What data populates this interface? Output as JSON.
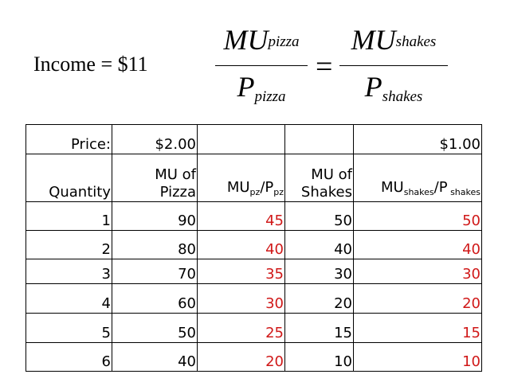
{
  "income": "Income = $11",
  "formula": {
    "left_num_main": "MU",
    "left_num_sub": "pizza",
    "left_den_main": "P",
    "left_den_sub": "pizza",
    "equals": "=",
    "right_num_main": "MU",
    "right_num_sub": "shakes",
    "right_den_main": "P",
    "right_den_sub": "shakes"
  },
  "table": {
    "price_row": {
      "label": "Price:",
      "pizza_price": "$2.00",
      "shakes_price": "$1.00"
    },
    "headers": {
      "quantity": "Quantity",
      "mu_pizza_line1": "MU of",
      "mu_pizza_line2": "Pizza",
      "mupz_main": "MU",
      "mupz_sub": "pz",
      "ppz_main": "/P",
      "ppz_sub": "pz",
      "mu_shakes_line1": "MU of",
      "mu_shakes_line2": "Shakes",
      "mush_main": "MU",
      "mush_sub": "shakes",
      "psh_main": "/P",
      "psh_sub": " shakes"
    },
    "rows": [
      {
        "q": "1",
        "mu_pizza": "90",
        "ratio_pizza": "45",
        "mu_shakes": "50",
        "ratio_shakes": "50"
      },
      {
        "q": "2",
        "mu_pizza": "80",
        "ratio_pizza": "40",
        "mu_shakes": "40",
        "ratio_shakes": "40"
      },
      {
        "q": "3",
        "mu_pizza": "70",
        "ratio_pizza": "35",
        "mu_shakes": "30",
        "ratio_shakes": "30"
      },
      {
        "q": "4",
        "mu_pizza": "60",
        "ratio_pizza": "30",
        "mu_shakes": "20",
        "ratio_shakes": "20"
      },
      {
        "q": "5",
        "mu_pizza": "50",
        "ratio_pizza": "25",
        "mu_shakes": "15",
        "ratio_shakes": "15"
      },
      {
        "q": "6",
        "mu_pizza": "40",
        "ratio_pizza": "20",
        "mu_shakes": "10",
        "ratio_shakes": "10"
      }
    ]
  },
  "colors": {
    "ratio_text": "#d01818",
    "text": "#000000"
  }
}
